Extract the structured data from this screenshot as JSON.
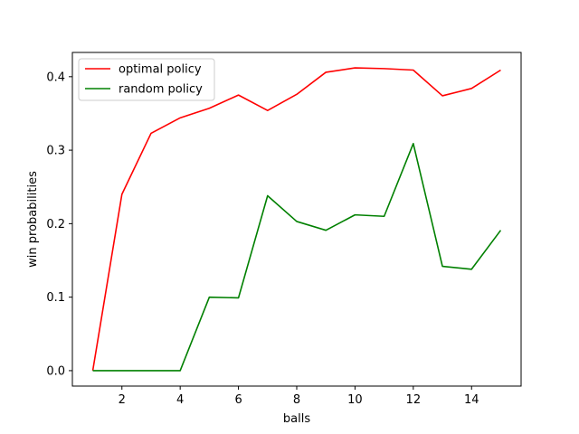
{
  "chart_data": {
    "type": "line",
    "title": "",
    "xlabel": "balls",
    "ylabel": "win probabilities",
    "x": [
      1,
      2,
      3,
      4,
      5,
      6,
      7,
      8,
      9,
      10,
      11,
      12,
      13,
      14,
      15
    ],
    "xlim": [
      0.3,
      15.7
    ],
    "ylim": [
      -0.021,
      0.433
    ],
    "xticks": [
      2,
      4,
      6,
      8,
      10,
      12,
      14
    ],
    "yticks": [
      0.0,
      0.1,
      0.2,
      0.3,
      0.4
    ],
    "grid": false,
    "legend_position": "upper left",
    "series": [
      {
        "name": "optimal policy",
        "color": "#ff0000",
        "values": [
          0.0,
          0.24,
          0.323,
          0.344,
          0.357,
          0.375,
          0.354,
          0.376,
          0.406,
          0.412,
          0.411,
          0.409,
          0.374,
          0.384,
          0.409
        ]
      },
      {
        "name": "random policy",
        "color": "#008000",
        "values": [
          0.0,
          0.0,
          0.0,
          0.0,
          0.1,
          0.099,
          0.238,
          0.203,
          0.191,
          0.212,
          0.21,
          0.309,
          0.142,
          0.138,
          0.191
        ]
      }
    ]
  }
}
